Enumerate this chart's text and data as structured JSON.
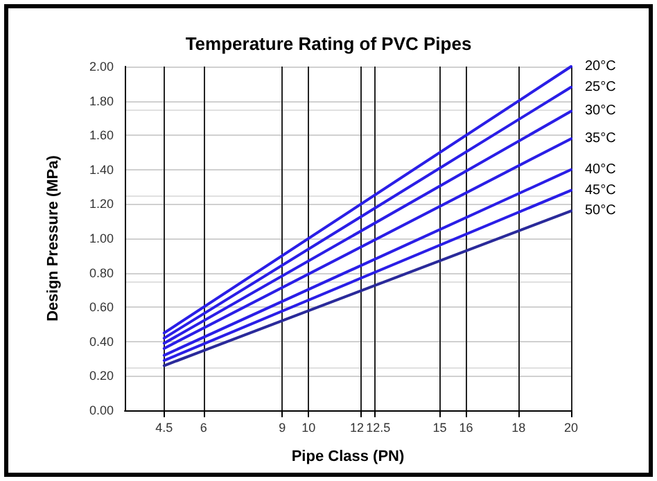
{
  "chart_data": {
    "type": "line",
    "title": "Temperature Rating of PVC Pipes",
    "xlabel": "Pipe Class (PN)",
    "ylabel": "Design Pressure (MPa)",
    "x": [
      4.5,
      20
    ],
    "xlim": [
      3,
      20
    ],
    "xticks": [
      4.5,
      6,
      9,
      10,
      12,
      12.5,
      15,
      16,
      18,
      20
    ],
    "ylim": [
      0,
      2
    ],
    "yticks": [
      {
        "value": 0,
        "label": "0.00"
      },
      {
        "value": 0.2,
        "label": "0.20"
      },
      {
        "value": 0.4,
        "label": "0.40"
      },
      {
        "value": 0.6,
        "label": "0.60"
      },
      {
        "value": 0.8,
        "label": "0.80"
      },
      {
        "value": 1,
        "label": "1.00"
      },
      {
        "value": 1.2,
        "label": "1.20"
      },
      {
        "value": 1.4,
        "label": "1.40"
      },
      {
        "value": 1.6,
        "label": "1.60"
      },
      {
        "value": 1.8,
        "label": "1.80"
      },
      {
        "value": 2,
        "label": "2.00"
      }
    ],
    "grid": true,
    "legend": false,
    "marker": "none",
    "line_style": "solid",
    "series": [
      {
        "name": "20°C",
        "color": "#2a1ee6",
        "values": [
          0.45,
          2.0
        ]
      },
      {
        "name": "25°C",
        "color": "#2a1ee6",
        "values": [
          0.42,
          1.88
        ]
      },
      {
        "name": "30°C",
        "color": "#2a1ee6",
        "values": [
          0.39,
          1.74
        ]
      },
      {
        "name": "35°C",
        "color": "#2a1ee6",
        "values": [
          0.36,
          1.58
        ]
      },
      {
        "name": "40°C",
        "color": "#2a1ee6",
        "values": [
          0.32,
          1.4
        ]
      },
      {
        "name": "45°C",
        "color": "#2a1ee6",
        "values": [
          0.29,
          1.28
        ]
      },
      {
        "name": "50°C",
        "color": "#2a2a9a",
        "values": [
          0.26,
          1.16
        ]
      }
    ]
  }
}
